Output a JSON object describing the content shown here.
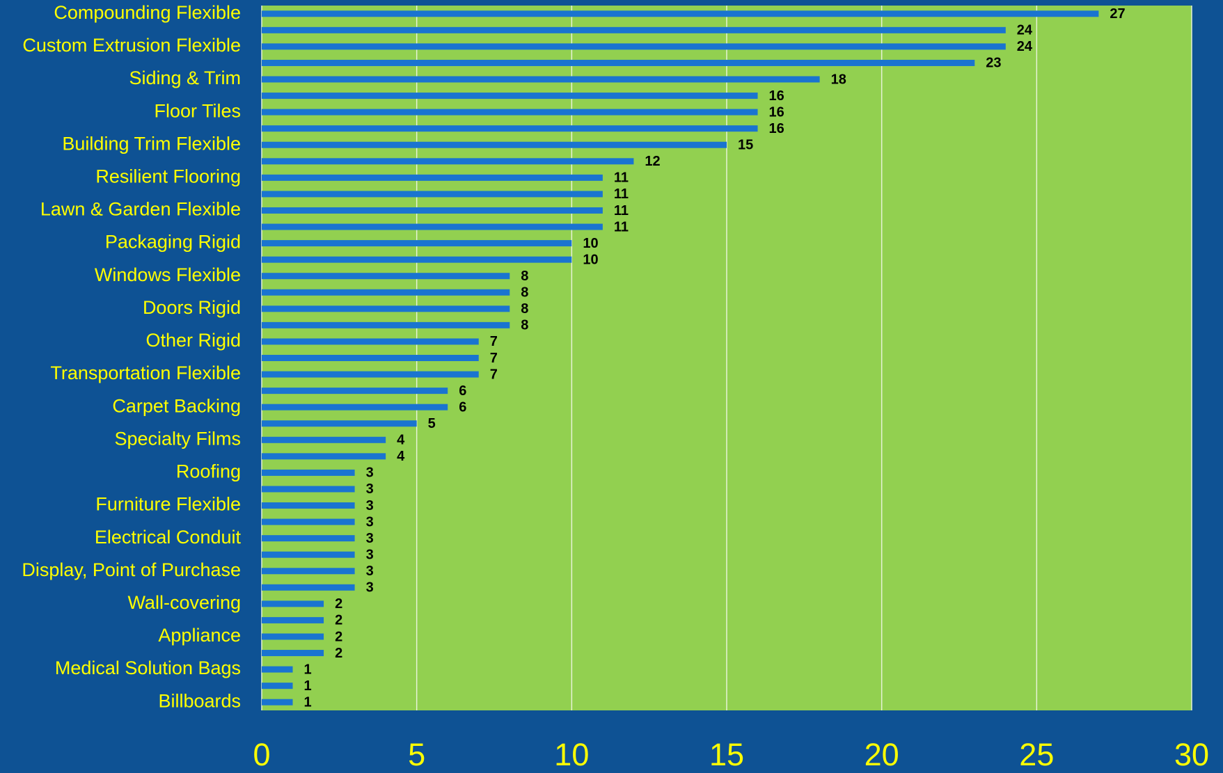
{
  "chart_data": {
    "type": "barh",
    "categories": [
      "Compounding Flexible",
      null,
      "Custom Extrusion Flexible",
      null,
      "Siding & Trim",
      null,
      "Floor Tiles",
      null,
      "Building Trim Flexible",
      null,
      "Resilient Flooring",
      null,
      "Lawn & Garden Flexible",
      null,
      "Packaging Rigid",
      null,
      "Windows Flexible",
      null,
      "Doors Rigid",
      null,
      "Other Rigid",
      null,
      "Transportation Flexible",
      null,
      "Carpet Backing",
      null,
      "Specialty Films",
      null,
      "Roofing",
      null,
      "Furniture Flexible",
      null,
      "Electrical Conduit",
      null,
      "Display, Point of Purchase",
      null,
      "Wall-covering",
      null,
      "Appliance",
      null,
      "Medical Solution Bags",
      null,
      "Billboards"
    ],
    "values": [
      27,
      24,
      24,
      23,
      18,
      16,
      16,
      16,
      15,
      12,
      11,
      11,
      11,
      11,
      10,
      10,
      8,
      8,
      8,
      8,
      7,
      7,
      7,
      6,
      6,
      5,
      4,
      4,
      3,
      3,
      3,
      3,
      3,
      3,
      3,
      3,
      2,
      2,
      2,
      2,
      1,
      1,
      1
    ],
    "color": "#1a74d0",
    "xlim": [
      0,
      30
    ],
    "xticks": [
      0,
      5,
      10,
      15,
      20,
      25,
      30
    ],
    "grid": true
  }
}
